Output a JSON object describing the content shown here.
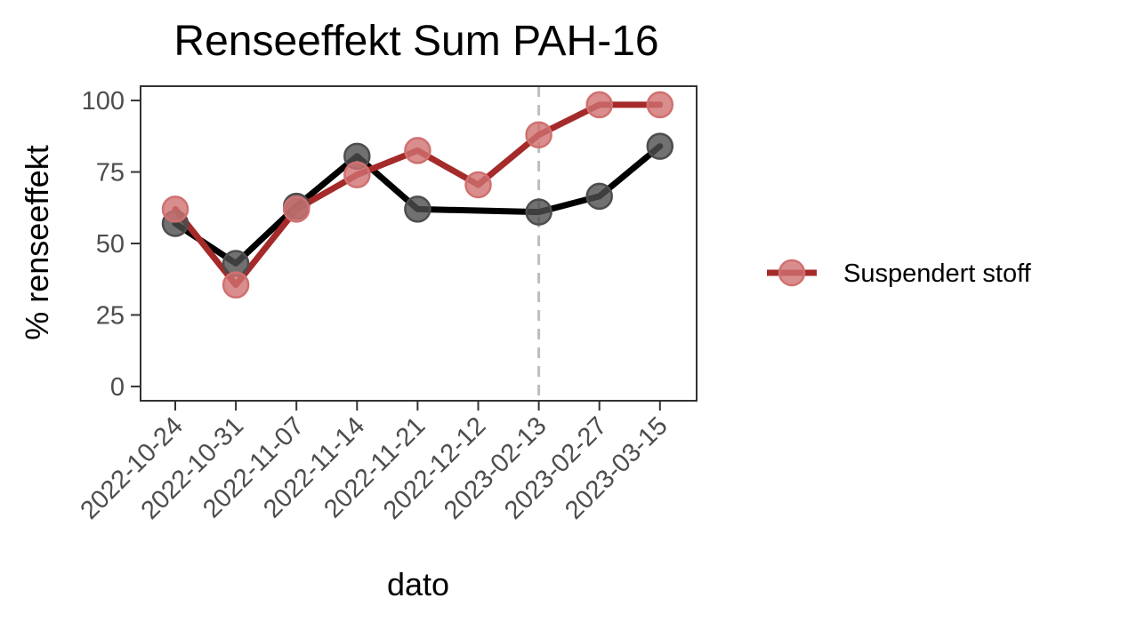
{
  "chart_data": {
    "type": "line",
    "title": "Renseeffekt Sum PAH-16",
    "xlabel": "dato",
    "ylabel": "% renseeffekt",
    "categories": [
      "2022-10-24",
      "2022-10-31",
      "2022-11-07",
      "2022-11-14",
      "2022-11-21",
      "2022-12-12",
      "2023-02-13",
      "2023-02-27",
      "2023-03-15"
    ],
    "ylim": [
      -5,
      105
    ],
    "yticks": [
      0,
      25,
      50,
      75,
      100
    ],
    "ytick_labels": [
      "0",
      "25",
      "50",
      "75",
      "100"
    ],
    "vline": {
      "x": "2023-02-13",
      "style": "dashed",
      "color": "#bdbdbd"
    },
    "series": [
      {
        "key": "black",
        "color": "#000000",
        "point_color": "#4d4d4d",
        "x": [
          "2022-10-24",
          "2022-10-31",
          "2022-11-07",
          "2022-11-14",
          "2022-11-21",
          "2023-02-13",
          "2023-02-27",
          "2023-03-15"
        ],
        "values": [
          57,
          43,
          63,
          80.5,
          62,
          61,
          66.5,
          84
        ]
      },
      {
        "key": "red",
        "name": "Suspendert stoff",
        "color": "#a52a2a",
        "point_color": "#d07070",
        "x": [
          "2022-10-24",
          "2022-10-31",
          "2022-11-07",
          "2022-11-14",
          "2022-11-21",
          "2022-12-12",
          "2023-02-13",
          "2023-02-27",
          "2023-03-15"
        ],
        "values": [
          62,
          35.5,
          62,
          74,
          82.5,
          70.5,
          88,
          98.5,
          98.5
        ]
      }
    ],
    "legend": {
      "position": "right",
      "entries": [
        "Suspendert stoff"
      ]
    },
    "grid": false
  }
}
